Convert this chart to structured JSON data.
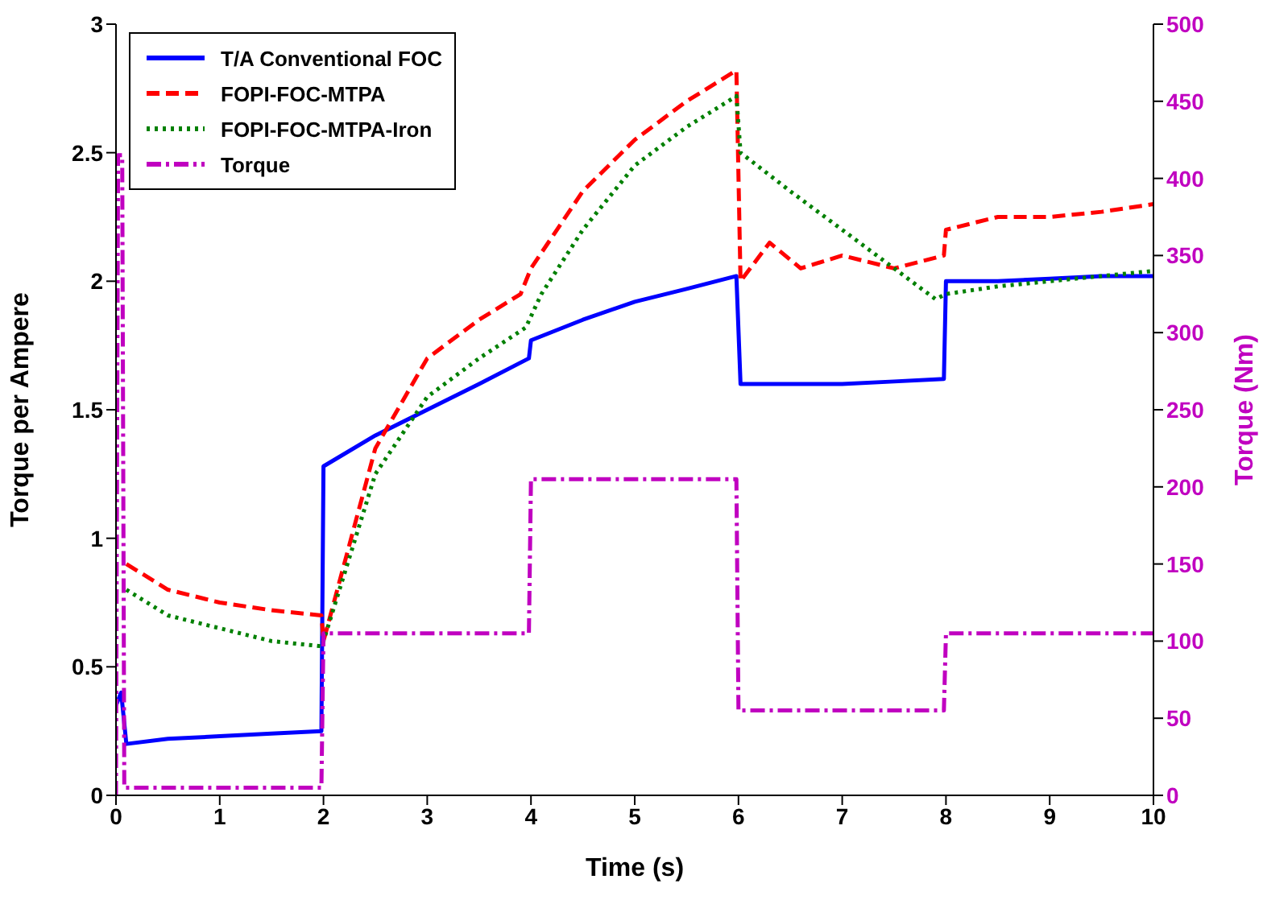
{
  "chart_data": {
    "type": "line",
    "xlabel": "Time (s)",
    "ylabel": "Torque per Ampere",
    "y2label": "Torque (Nm)",
    "xlim": [
      0,
      10
    ],
    "xticks": [
      0,
      1,
      2,
      3,
      4,
      5,
      6,
      7,
      8,
      9,
      10
    ],
    "ylim": [
      0,
      3
    ],
    "yticks": [
      0,
      0.5,
      1,
      1.5,
      2,
      2.5,
      3
    ],
    "y2lim": [
      0,
      500
    ],
    "y2ticks": [
      0,
      50,
      100,
      150,
      200,
      250,
      300,
      350,
      400,
      450,
      500
    ],
    "grid": false,
    "legend": "top left",
    "marker": "none",
    "series": [
      {
        "name": "T/A Conventional FOC",
        "color": "#0000ff",
        "line_style": "solid",
        "x": [
          0,
          0.05,
          0.1,
          0.5,
          1,
          1.5,
          1.98,
          2,
          2.5,
          3,
          3.5,
          3.98,
          4,
          4.5,
          5,
          5.5,
          5.98,
          6.02,
          6.5,
          7,
          7.5,
          7.98,
          8,
          8.5,
          9,
          9.5,
          10
        ],
        "values": [
          0.35,
          0.4,
          0.2,
          0.22,
          0.23,
          0.24,
          0.25,
          1.28,
          1.4,
          1.5,
          1.6,
          1.7,
          1.77,
          1.85,
          1.92,
          1.97,
          2.02,
          1.6,
          1.6,
          1.6,
          1.61,
          1.62,
          2.0,
          2.0,
          2.01,
          2.02,
          2.02
        ]
      },
      {
        "name": "FOPI-FOC-MTPA",
        "color": "#ff0000",
        "line_style": "dashed",
        "x": [
          0.1,
          0.5,
          1,
          1.5,
          1.98,
          2,
          2.5,
          3,
          3.5,
          3.9,
          4,
          4.5,
          5,
          5.5,
          5.98,
          6.02,
          6.3,
          6.6,
          7,
          7.5,
          7.98,
          8,
          8.5,
          9,
          9.5,
          10
        ],
        "values": [
          0.9,
          0.8,
          0.75,
          0.72,
          0.7,
          0.6,
          1.35,
          1.7,
          1.85,
          1.95,
          2.05,
          2.35,
          2.55,
          2.7,
          2.82,
          2.0,
          2.15,
          2.05,
          2.1,
          2.05,
          2.1,
          2.2,
          2.25,
          2.25,
          2.27,
          2.3
        ]
      },
      {
        "name": "FOPI-FOC-MTPA-Iron",
        "color": "#008000",
        "line_style": "dotted",
        "x": [
          0.1,
          0.5,
          1,
          1.5,
          1.98,
          2,
          2.5,
          3,
          3.5,
          3.95,
          4.1,
          4.5,
          5,
          5.5,
          5.98,
          6.02,
          6.5,
          7,
          7.5,
          7.9,
          8,
          8.5,
          9,
          9.5,
          10
        ],
        "values": [
          0.8,
          0.7,
          0.65,
          0.6,
          0.58,
          0.6,
          1.25,
          1.55,
          1.7,
          1.82,
          1.95,
          2.2,
          2.45,
          2.6,
          2.72,
          2.5,
          2.35,
          2.2,
          2.05,
          1.93,
          1.95,
          1.98,
          2.0,
          2.02,
          2.04
        ]
      },
      {
        "name": "Torque",
        "color": "#c000c0",
        "line_style": "dashdot",
        "axis": "y2",
        "x": [
          0,
          0.02,
          0.06,
          0.08,
          1.98,
          2,
          3.98,
          4,
          5.98,
          6,
          7.98,
          8,
          10
        ],
        "values": [
          0,
          415,
          415,
          5,
          5,
          105,
          105,
          205,
          205,
          55,
          55,
          105,
          105
        ]
      }
    ]
  }
}
